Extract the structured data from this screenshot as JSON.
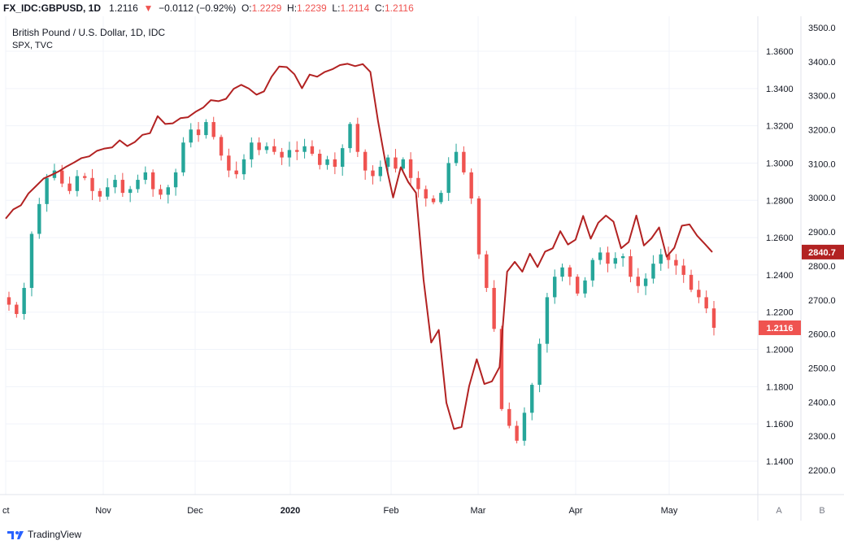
{
  "header": {
    "symbol": "FX_IDC:GBPUSD, 1D",
    "last": "1.2116",
    "change": "−0.0112 (−0.92%)",
    "o_label": "O:",
    "o": "1.2229",
    "h_label": "H:",
    "h": "1.2239",
    "l_label": "L:",
    "l": "1.2114",
    "c_label": "C:",
    "c": "1.2116"
  },
  "legend": {
    "main": "British Pound / U.S. Dollar, 1D, IDC",
    "overlay": "SPX, TVC"
  },
  "footer": {
    "brand": "TradingView"
  },
  "scale_buttons": {
    "a": "A",
    "b": "B"
  },
  "colors": {
    "up": "#26a69a",
    "down": "#ef5350",
    "spx": "#b22222",
    "grid": "#f0f3fa"
  },
  "chart_data": {
    "type": "line",
    "x_ticks": [
      "ct",
      "Nov",
      "Dec",
      "2020",
      "Feb",
      "Mar",
      "Apr",
      "May"
    ],
    "left_axis_ticks": [
      "1.3600",
      "1.3400",
      "1.3200",
      "1.3000",
      "1.2800",
      "1.2600",
      "1.2400",
      "1.2200",
      "1.2000",
      "1.1800",
      "1.1600",
      "1.1400"
    ],
    "right_axis_ticks": [
      "3500.0",
      "3400.0",
      "3300.0",
      "3200.0",
      "3100.0",
      "3000.0",
      "2900.0",
      "2800.0",
      "2700.0",
      "2600.0",
      "2500.0",
      "2400.0",
      "2300.0",
      "2200.0"
    ],
    "series": [
      {
        "name": "GBPUSD",
        "kind": "candlestick",
        "close_keypoints": [
          1.224,
          1.219,
          1.233,
          1.262,
          1.278,
          1.292,
          1.296,
          1.289,
          1.285,
          1.293,
          1.292,
          1.285,
          1.282,
          1.287,
          1.291,
          1.284,
          1.286,
          1.291,
          1.295,
          1.286,
          1.283,
          1.287,
          1.295,
          1.311,
          1.318,
          1.315,
          1.322,
          1.314,
          1.304,
          1.296,
          1.294,
          1.302,
          1.311,
          1.307,
          1.309,
          1.306,
          1.303,
          1.307,
          1.306,
          1.309,
          1.305,
          1.299,
          1.302,
          1.298,
          1.308,
          1.321,
          1.306,
          1.296,
          1.293,
          1.298,
          1.303,
          1.297,
          1.302,
          1.292,
          1.286,
          1.281,
          1.279,
          1.284,
          1.3,
          1.306,
          1.295,
          1.281,
          1.251,
          1.233,
          1.211,
          1.168,
          1.159,
          1.151,
          1.166,
          1.181,
          1.203,
          1.228,
          1.239,
          1.244,
          1.239,
          1.23,
          1.237,
          1.248,
          1.252,
          1.246,
          1.249,
          1.25,
          1.239,
          1.234,
          1.238,
          1.246,
          1.251,
          1.248,
          1.245,
          1.24,
          1.232,
          1.228,
          1.222,
          1.2116
        ],
        "last_value": 1.2116,
        "last_label": "1.2116"
      },
      {
        "name": "SPX",
        "kind": "line",
        "values": [
          2939,
          2966,
          2978,
          3013,
          3035,
          3057,
          3067,
          3078,
          3092,
          3104,
          3117,
          3122,
          3138,
          3145,
          3148,
          3169,
          3152,
          3164,
          3185,
          3190,
          3240,
          3217,
          3219,
          3234,
          3237,
          3253,
          3265,
          3287,
          3284,
          3291,
          3320,
          3332,
          3321,
          3303,
          3313,
          3356,
          3386,
          3384,
          3363,
          3322,
          3362,
          3356,
          3370,
          3378,
          3390,
          3394,
          3387,
          3393,
          3370,
          3226,
          3102,
          3001,
          3090,
          3046,
          3015,
          2760,
          2575,
          2612,
          2398,
          2321,
          2327,
          2447,
          2526,
          2453,
          2461,
          2503,
          2783,
          2812,
          2783,
          2836,
          2797,
          2842,
          2852,
          2902,
          2863,
          2877,
          2947,
          2880,
          2927,
          2948,
          2930,
          2852,
          2870,
          2948,
          2860,
          2881,
          2913,
          2827,
          2853,
          2918,
          2922,
          2889,
          2865,
          2840.7
        ],
        "last_value": 2840.7,
        "last_label": "2840.7"
      }
    ],
    "grid": true
  }
}
